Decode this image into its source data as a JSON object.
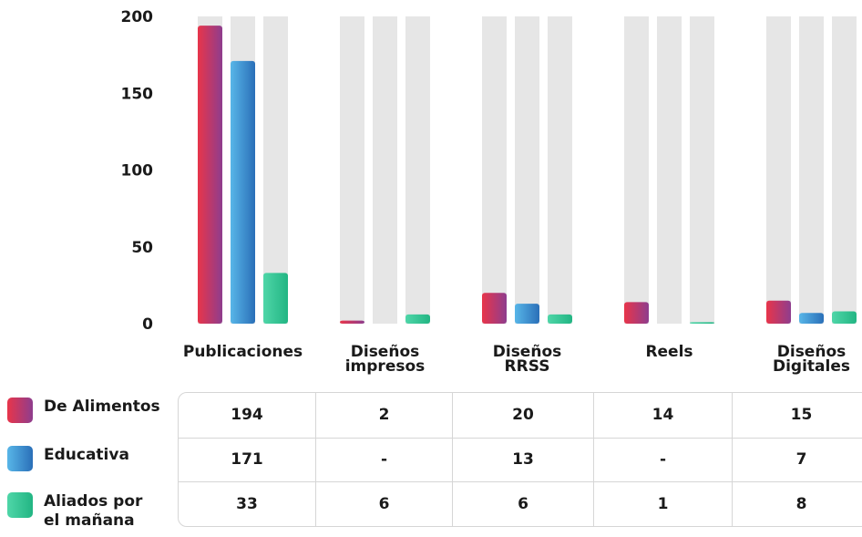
{
  "chart_data": {
    "type": "bar",
    "categories": [
      "Publicaciones",
      "Diseños impresos",
      "Diseños RRSS",
      "Reels",
      "Diseños Digitales"
    ],
    "series": [
      {
        "name": "De Alimentos",
        "values": [
          194,
          2,
          20,
          14,
          15
        ],
        "color": "#d4384f"
      },
      {
        "name": "Educativa",
        "values": [
          171,
          0,
          13,
          0,
          7
        ],
        "color": "#3a8fd4"
      },
      {
        "name": "Aliados por el mañana",
        "values": [
          33,
          6,
          6,
          1,
          8
        ],
        "color": "#2fc492"
      }
    ],
    "yticks": [
      0,
      50,
      100,
      150,
      200
    ],
    "ylim": [
      0,
      200
    ],
    "grid": false,
    "legend_position": "bottom-left",
    "background_track_color": "#e6e6e6"
  },
  "category_lines": [
    [
      "Publicaciones"
    ],
    [
      "Diseños",
      "impresos"
    ],
    [
      "Diseños",
      "RRSS"
    ],
    [
      "Reels"
    ],
    [
      "Diseños",
      "Digitales"
    ]
  ],
  "legend": {
    "items": [
      {
        "label": "De Alimentos"
      },
      {
        "label": "Educativa"
      },
      {
        "label": "Aliados por\nel mañana"
      }
    ]
  },
  "table": {
    "rows": [
      [
        "194",
        "2",
        "20",
        "14",
        "15"
      ],
      [
        "171",
        "-",
        "13",
        "-",
        "7"
      ],
      [
        "33",
        "6",
        "6",
        "1",
        "8"
      ]
    ]
  }
}
